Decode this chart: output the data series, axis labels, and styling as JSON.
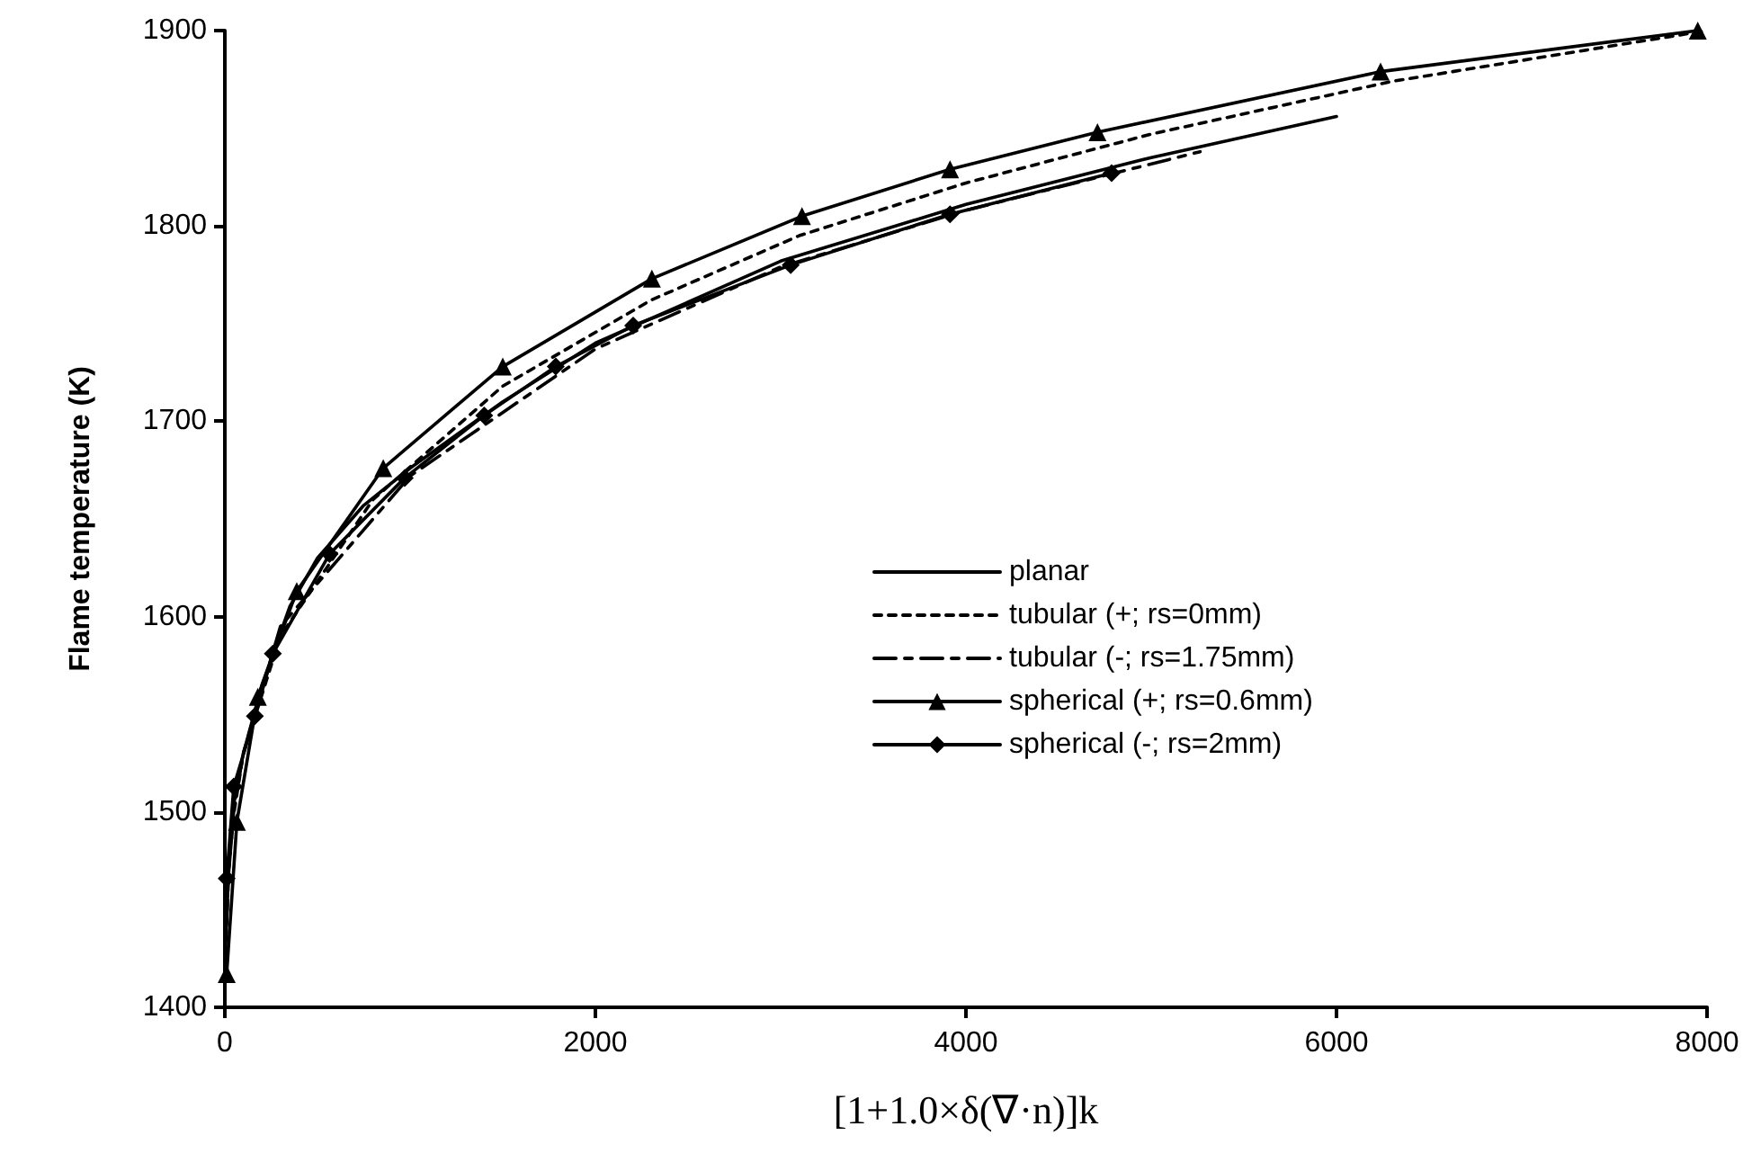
{
  "chart_data": {
    "type": "line",
    "xlabel": "[1+1.0×δ(∇·n)]k",
    "ylabel": "Flame temperature (K)",
    "xlim": [
      0,
      8000
    ],
    "xticks": [
      0,
      2000,
      4000,
      6000,
      8000
    ],
    "ylim": [
      1400,
      1900
    ],
    "yticks": [
      1400,
      1500,
      1600,
      1700,
      1800,
      1900
    ],
    "grid": false,
    "legend": "right",
    "series": [
      {
        "name": "planar",
        "color": "#000000",
        "line_style": "solid",
        "marker": "none",
        "x": [
          0,
          20,
          50,
          100,
          200,
          350,
          500,
          750,
          1000,
          1500,
          2000,
          3000,
          4000,
          5000,
          6000
        ],
        "values": [
          1420,
          1470,
          1505,
          1530,
          1565,
          1605,
          1630,
          1657,
          1676,
          1710,
          1740,
          1782,
          1811,
          1835,
          1856
        ]
      },
      {
        "name": "tubular (+; rs=0mm)",
        "color": "#000000",
        "line_style": "dotted",
        "marker": "none",
        "x": [
          0,
          20,
          50,
          100,
          300,
          800,
          1500,
          2300,
          3100,
          4000,
          5000,
          6300,
          8000
        ],
        "values": [
          1420,
          1470,
          1500,
          1530,
          1590,
          1660,
          1718,
          1762,
          1795,
          1822,
          1847,
          1874,
          1900
        ]
      },
      {
        "name": "tubular (-; rs=1.75mm)",
        "color": "#000000",
        "line_style": "dashed",
        "marker": "none",
        "x": [
          0,
          20,
          50,
          100,
          300,
          1000,
          2000,
          3000,
          4000,
          5264
        ],
        "values": [
          1420,
          1468,
          1503,
          1530,
          1595,
          1672,
          1737,
          1779,
          1808,
          1838
        ]
      },
      {
        "name": "spherical (+; rs=0.6mm)",
        "color": "#000000",
        "line_style": "solid",
        "marker": "triangle",
        "x": [
          10,
          65,
          178,
          388,
          855,
          1500,
          2305,
          3115,
          3914,
          4710,
          6238,
          7950
        ],
        "values": [
          1417,
          1495,
          1559,
          1613,
          1676,
          1728,
          1773,
          1805,
          1829,
          1848,
          1879,
          1900
        ]
      },
      {
        "name": "spherical (-; rs=2mm)",
        "color": "#000000",
        "line_style": "solid",
        "marker": "diamond",
        "x": [
          10,
          48,
          162,
          259,
          565,
          971,
          1400,
          1786,
          2204,
          3054,
          3914,
          4786
        ],
        "values": [
          1466,
          1513,
          1549,
          1581,
          1632,
          1671,
          1703,
          1728,
          1749,
          1780,
          1806,
          1827
        ]
      }
    ]
  }
}
